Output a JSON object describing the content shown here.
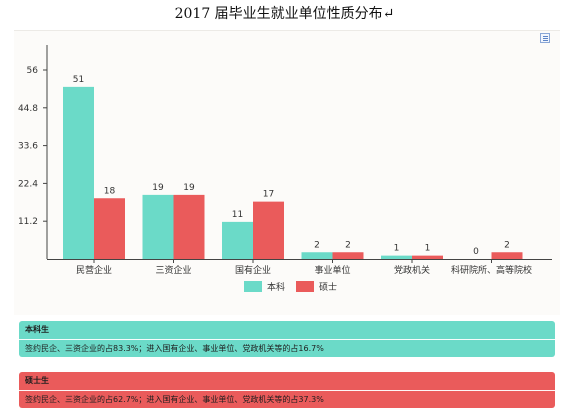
{
  "title": "2017 届毕业生就业单位性质分布↵",
  "chart_data": {
    "type": "bar",
    "categories": [
      "民营企业",
      "三资企业",
      "国有企业",
      "事业单位",
      "党政机关",
      "科研院所、高等院校"
    ],
    "series": [
      {
        "name": "本科",
        "values": [
          51,
          19,
          11,
          2,
          1,
          0
        ],
        "color": "#6bdac8"
      },
      {
        "name": "硕士",
        "values": [
          18,
          19,
          17,
          2,
          1,
          2
        ],
        "color": "#ea5b5b"
      }
    ],
    "yticks": [
      "11.2",
      "22.4",
      "33.6",
      "44.8",
      "56"
    ],
    "ylim": [
      0,
      56
    ],
    "grid": false,
    "legend": "bottom-center"
  },
  "summary": [
    {
      "title": "本科生",
      "text": "签约民企、三资企业的占83.3%；进入国有企业、事业单位、党政机关等的占16.7%",
      "color": "#6bdac8"
    },
    {
      "title": "硕士生",
      "text": "签约民企、三资企业的占62.7%；进入国有企业、事业单位、党政机关等的占37.3%",
      "color": "#ea5b5b"
    }
  ]
}
